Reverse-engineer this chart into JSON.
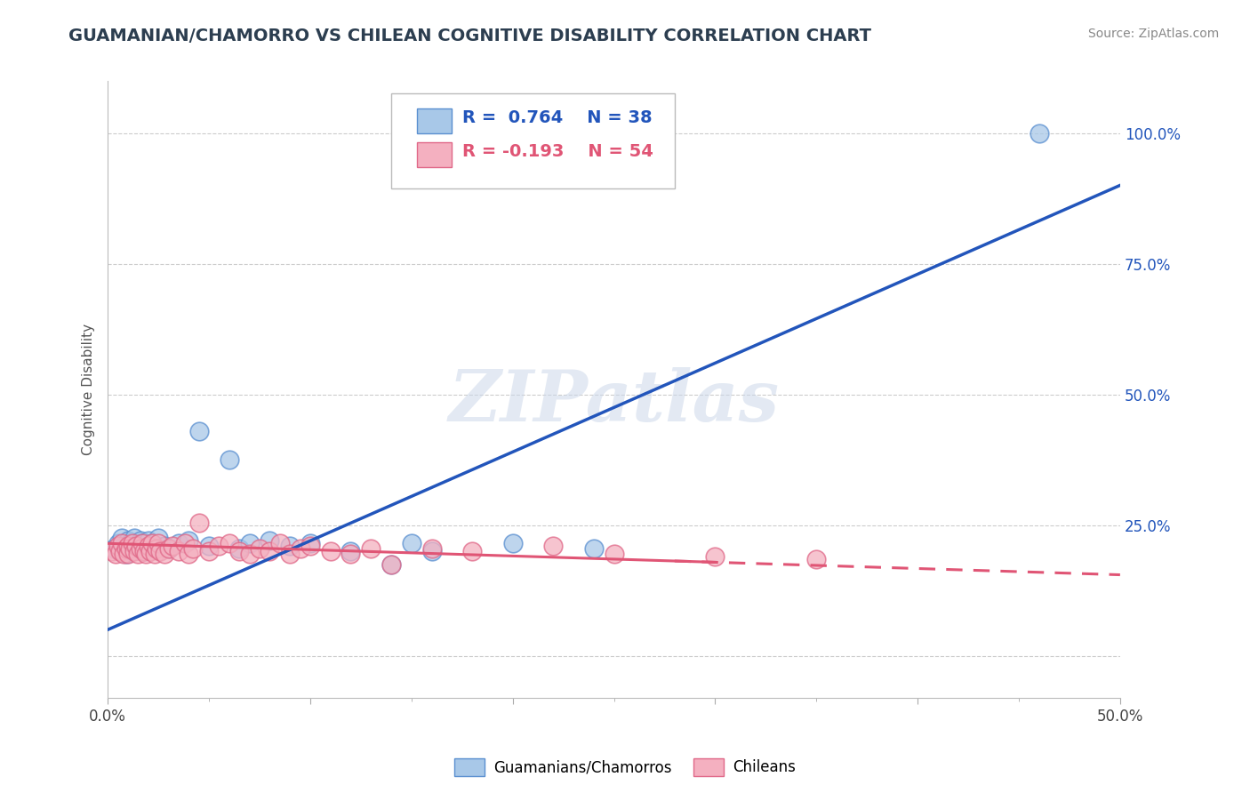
{
  "title": "GUAMANIAN/CHAMORRO VS CHILEAN COGNITIVE DISABILITY CORRELATION CHART",
  "source": "Source: ZipAtlas.com",
  "ylabel": "Cognitive Disability",
  "ytick_labels": [
    "",
    "25.0%",
    "50.0%",
    "75.0%",
    "100.0%"
  ],
  "ytick_values": [
    0.0,
    0.25,
    0.5,
    0.75,
    1.0
  ],
  "xlim": [
    0.0,
    0.5
  ],
  "ylim": [
    -0.08,
    1.1
  ],
  "blue_color": "#a8c8e8",
  "pink_color": "#f4b0c0",
  "blue_edge_color": "#5a8fd0",
  "pink_edge_color": "#e06888",
  "blue_line_color": "#2255bb",
  "pink_line_color": "#e05575",
  "watermark": "ZIPatlas",
  "background_color": "#ffffff",
  "legend_label_blue": "R =  0.764    N = 38",
  "legend_label_pink": "R = -0.193    N = 54",
  "legend_blue_patch": "#a8c8e8",
  "legend_pink_patch": "#f4b0c0",
  "r_color": "#333355",
  "n_color": "#3366cc",
  "guamanian_points": [
    [
      0.003,
      0.205
    ],
    [
      0.005,
      0.215
    ],
    [
      0.006,
      0.2
    ],
    [
      0.007,
      0.225
    ],
    [
      0.008,
      0.21
    ],
    [
      0.009,
      0.195
    ],
    [
      0.01,
      0.22
    ],
    [
      0.01,
      0.205
    ],
    [
      0.011,
      0.215
    ],
    [
      0.012,
      0.2
    ],
    [
      0.013,
      0.225
    ],
    [
      0.014,
      0.21
    ],
    [
      0.015,
      0.205
    ],
    [
      0.016,
      0.22
    ],
    [
      0.017,
      0.215
    ],
    [
      0.018,
      0.2
    ],
    [
      0.02,
      0.22
    ],
    [
      0.022,
      0.215
    ],
    [
      0.025,
      0.225
    ],
    [
      0.028,
      0.21
    ],
    [
      0.03,
      0.205
    ],
    [
      0.035,
      0.215
    ],
    [
      0.04,
      0.22
    ],
    [
      0.045,
      0.43
    ],
    [
      0.05,
      0.21
    ],
    [
      0.06,
      0.375
    ],
    [
      0.065,
      0.205
    ],
    [
      0.07,
      0.215
    ],
    [
      0.08,
      0.22
    ],
    [
      0.09,
      0.21
    ],
    [
      0.1,
      0.215
    ],
    [
      0.12,
      0.2
    ],
    [
      0.14,
      0.175
    ],
    [
      0.15,
      0.215
    ],
    [
      0.16,
      0.2
    ],
    [
      0.2,
      0.215
    ],
    [
      0.24,
      0.205
    ],
    [
      0.46,
      1.0
    ]
  ],
  "chilean_points": [
    [
      0.002,
      0.2
    ],
    [
      0.004,
      0.195
    ],
    [
      0.005,
      0.21
    ],
    [
      0.006,
      0.2
    ],
    [
      0.007,
      0.215
    ],
    [
      0.008,
      0.195
    ],
    [
      0.009,
      0.205
    ],
    [
      0.01,
      0.21
    ],
    [
      0.01,
      0.195
    ],
    [
      0.011,
      0.205
    ],
    [
      0.012,
      0.215
    ],
    [
      0.013,
      0.2
    ],
    [
      0.014,
      0.21
    ],
    [
      0.015,
      0.195
    ],
    [
      0.016,
      0.205
    ],
    [
      0.017,
      0.215
    ],
    [
      0.018,
      0.2
    ],
    [
      0.019,
      0.195
    ],
    [
      0.02,
      0.21
    ],
    [
      0.021,
      0.2
    ],
    [
      0.022,
      0.215
    ],
    [
      0.023,
      0.195
    ],
    [
      0.024,
      0.205
    ],
    [
      0.025,
      0.215
    ],
    [
      0.026,
      0.2
    ],
    [
      0.028,
      0.195
    ],
    [
      0.03,
      0.205
    ],
    [
      0.032,
      0.21
    ],
    [
      0.035,
      0.2
    ],
    [
      0.038,
      0.215
    ],
    [
      0.04,
      0.195
    ],
    [
      0.042,
      0.205
    ],
    [
      0.045,
      0.255
    ],
    [
      0.05,
      0.2
    ],
    [
      0.055,
      0.21
    ],
    [
      0.06,
      0.215
    ],
    [
      0.065,
      0.2
    ],
    [
      0.07,
      0.195
    ],
    [
      0.075,
      0.205
    ],
    [
      0.08,
      0.2
    ],
    [
      0.085,
      0.215
    ],
    [
      0.09,
      0.195
    ],
    [
      0.095,
      0.205
    ],
    [
      0.1,
      0.21
    ],
    [
      0.11,
      0.2
    ],
    [
      0.12,
      0.195
    ],
    [
      0.13,
      0.205
    ],
    [
      0.14,
      0.175
    ],
    [
      0.16,
      0.205
    ],
    [
      0.18,
      0.2
    ],
    [
      0.22,
      0.21
    ],
    [
      0.25,
      0.195
    ],
    [
      0.3,
      0.19
    ],
    [
      0.35,
      0.185
    ]
  ],
  "grid_color": "#cccccc",
  "title_fontsize": 14,
  "axis_label_fontsize": 11,
  "tick_fontsize": 12
}
